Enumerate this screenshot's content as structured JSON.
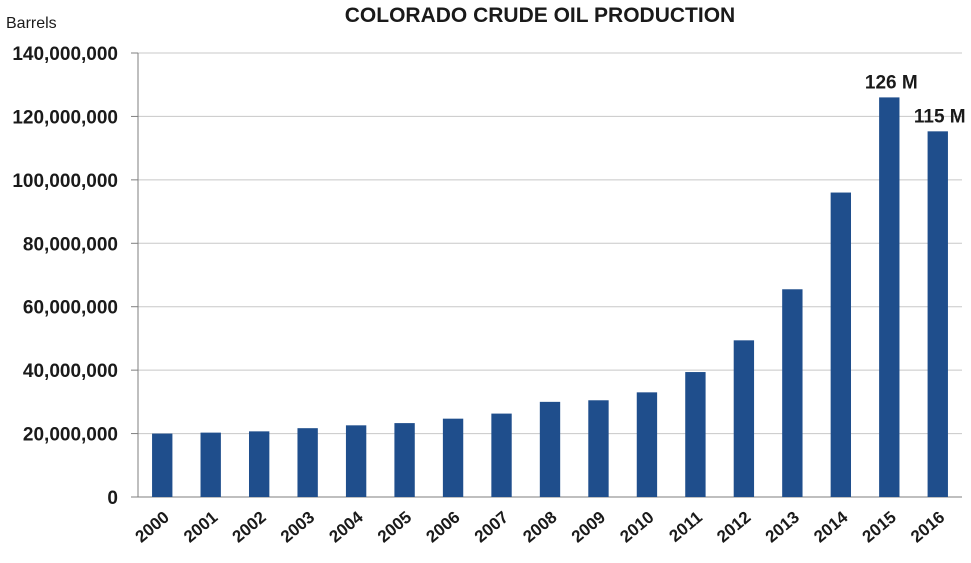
{
  "chart_data": {
    "type": "bar",
    "title": "COLORADO CRUDE OIL PRODUCTION",
    "ylabel": "Barrels",
    "xlabel": "",
    "categories": [
      "2000",
      "2001",
      "2002",
      "2003",
      "2004",
      "2005",
      "2006",
      "2007",
      "2008",
      "2009",
      "2010",
      "2011",
      "2012",
      "2013",
      "2014",
      "2015",
      "2016"
    ],
    "values": [
      20000000,
      20300000,
      20700000,
      21700000,
      22600000,
      23300000,
      24700000,
      26300000,
      30000000,
      30500000,
      33000000,
      39400000,
      49400000,
      65500000,
      96000000,
      126000000,
      115300000
    ],
    "data_labels": [
      {
        "category": "2015",
        "text": "126 M"
      },
      {
        "category": "2016",
        "text": "115 M"
      }
    ],
    "ylim": [
      0,
      140000000
    ],
    "yticks": [
      0,
      20000000,
      40000000,
      60000000,
      80000000,
      100000000,
      120000000,
      140000000
    ],
    "ytick_labels": [
      "0",
      "20,000,000",
      "40,000,000",
      "60,000,000",
      "80,000,000",
      "100,000,000",
      "120,000,000",
      "140,000,000"
    ],
    "grid": true,
    "legend": "none",
    "colors": {
      "bar": "#1f4e8c",
      "grid": "#c8c8c8",
      "axis": "#7f7f7f"
    }
  }
}
